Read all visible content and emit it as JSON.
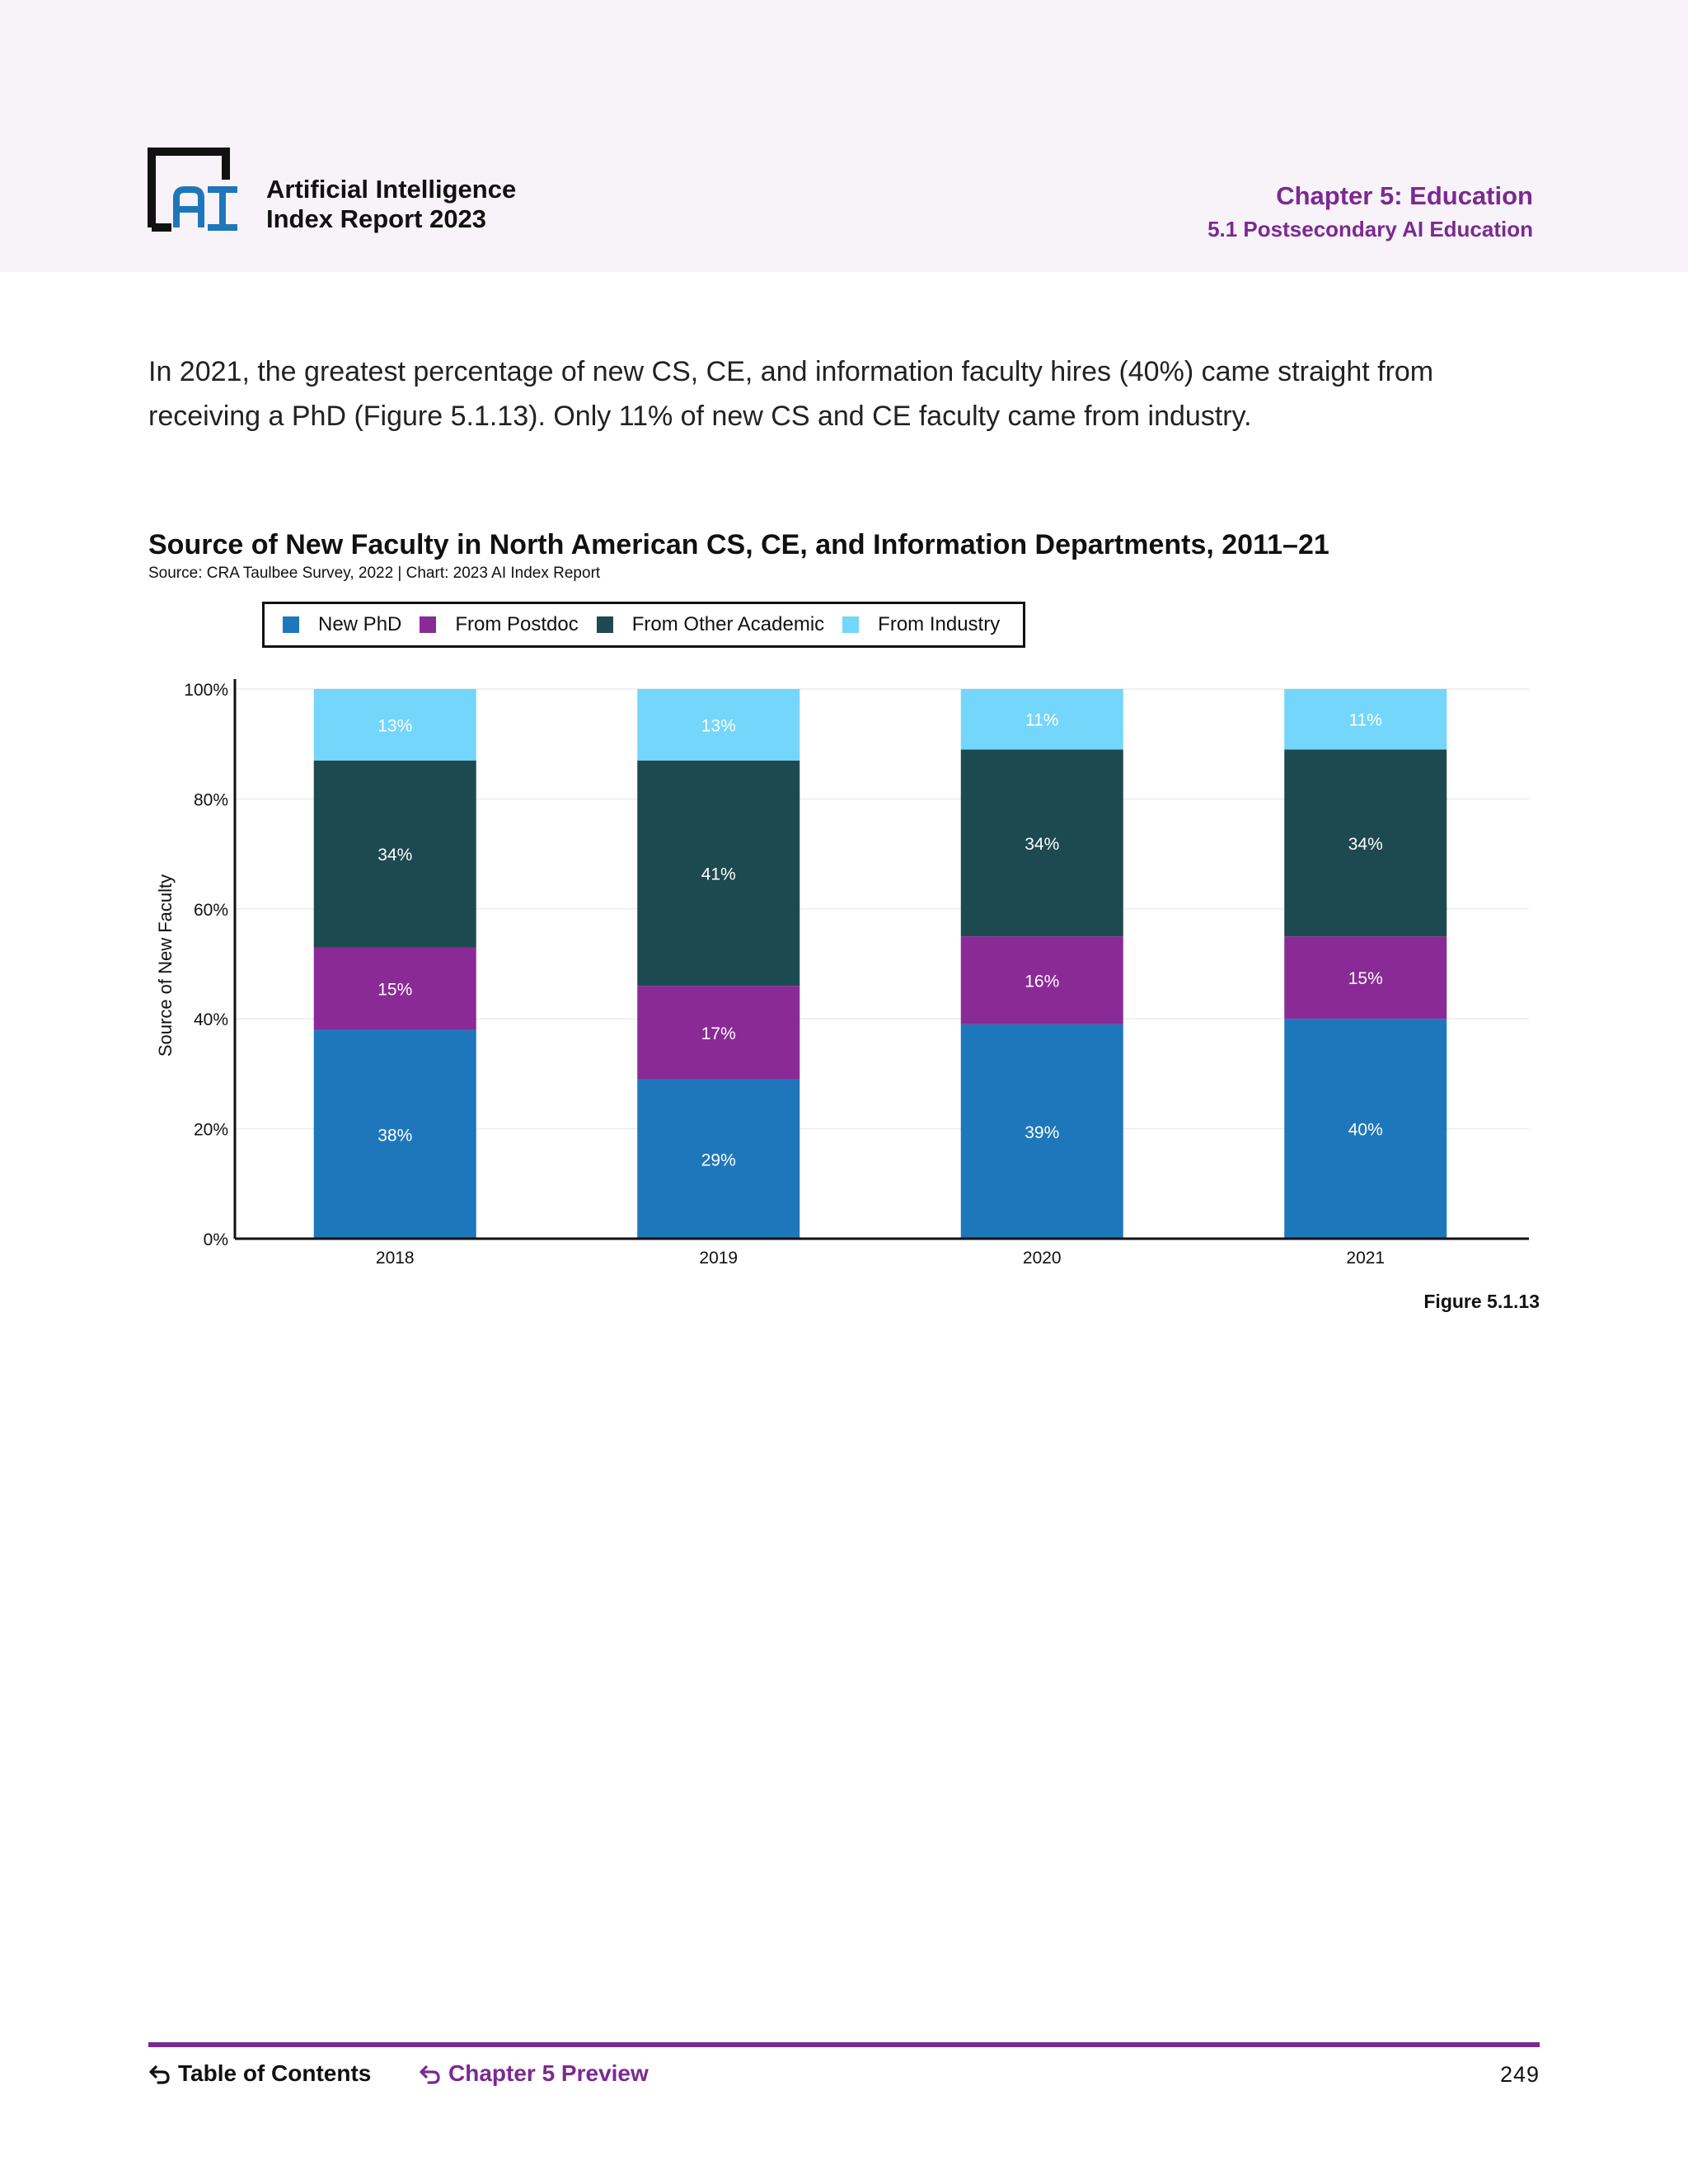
{
  "header": {
    "report_title_line1": "Artificial Intelligence",
    "report_title_line2": "Index Report 2023",
    "chapter_title": "Chapter 5: Education",
    "section_title": "5.1 Postsecondary AI Education",
    "logo_icon": "ai-index-logo"
  },
  "intro_text": "In 2021, the greatest percentage of new CS, CE, and information faculty hires (40%) came straight from receiving a PhD (Figure 5.1.13). Only 11% of new CS and CE faculty came from industry.",
  "figure_label": "Figure 5.1.13",
  "chart_data": {
    "type": "bar",
    "stacked": true,
    "title": "Source of New Faculty in North American CS, CE, and Information Departments, 2011–21",
    "subtitle": "Source: CRA Taulbee Survey, 2022 | Chart: 2023 AI Index Report",
    "xlabel": "",
    "ylabel": "Source of New Faculty",
    "ylim": [
      0,
      100
    ],
    "yticks": [
      "0%",
      "20%",
      "40%",
      "60%",
      "80%",
      "100%"
    ],
    "categories": [
      "2018",
      "2019",
      "2020",
      "2021"
    ],
    "series": [
      {
        "name": "New PhD",
        "color": "#1f77bb",
        "values": [
          38,
          29,
          39,
          40
        ],
        "labels": [
          "38%",
          "29%",
          "39%",
          "40%"
        ]
      },
      {
        "name": "From Postdoc",
        "color": "#8a2a96",
        "values": [
          15,
          17,
          16,
          15
        ],
        "labels": [
          "15%",
          "17%",
          "16%",
          "15%"
        ]
      },
      {
        "name": "From Other Academic",
        "color": "#1d4a50",
        "values": [
          34,
          41,
          34,
          34
        ],
        "labels": [
          "34%",
          "41%",
          "34%",
          "34%"
        ]
      },
      {
        "name": "From Industry",
        "color": "#74d6fa",
        "values": [
          13,
          13,
          11,
          11
        ],
        "labels": [
          "13%",
          "13%",
          "11%",
          "11%"
        ]
      }
    ],
    "grid": true,
    "legend_position": "top"
  },
  "footer": {
    "toc_label": "Table of Contents",
    "chapter_preview_label": "Chapter 5 Preview",
    "page_number": "249"
  }
}
